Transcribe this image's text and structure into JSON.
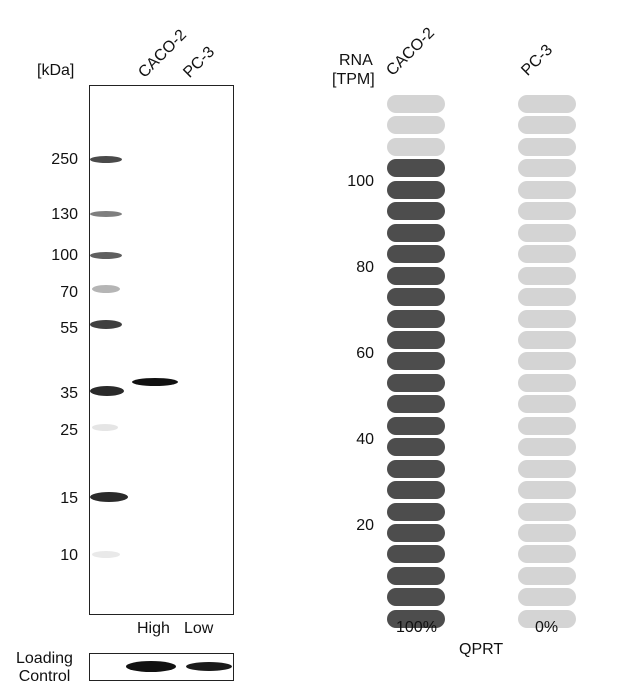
{
  "western_blot": {
    "unit_label": "[kDa]",
    "lanes": [
      "CACO-2",
      "PC-3"
    ],
    "markers": [
      "250",
      "130",
      "100",
      "70",
      "55",
      "35",
      "25",
      "15",
      "10"
    ],
    "expression_labels": [
      "High",
      "Low"
    ],
    "loading_control_label": "Loading\nControl"
  },
  "rna_panel": {
    "axis_label_line1": "RNA",
    "axis_label_line2": "[TPM]",
    "cell_lines": [
      "CACO-2",
      "PC-3"
    ],
    "ticks": [
      "100",
      "80",
      "60",
      "40",
      "20"
    ],
    "percentages": [
      "100%",
      "0%"
    ],
    "gene": "QPRT",
    "colors": {
      "dark": "#4d4d4d",
      "light": "#d4d4d4"
    },
    "caco2_level_fraction": 0.88,
    "pc3_level_fraction": 0.0
  }
}
